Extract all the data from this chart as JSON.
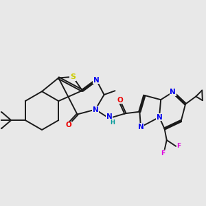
{
  "bg_color": "#e8e8e8",
  "bond_color": "#1a1a1a",
  "bond_width": 1.4,
  "atom_colors": {
    "S": "#cccc00",
    "N": "#0000ee",
    "O": "#ee0000",
    "F": "#dd00dd",
    "H": "#009999",
    "C": "#1a1a1a"
  },
  "font_size": 6.5
}
